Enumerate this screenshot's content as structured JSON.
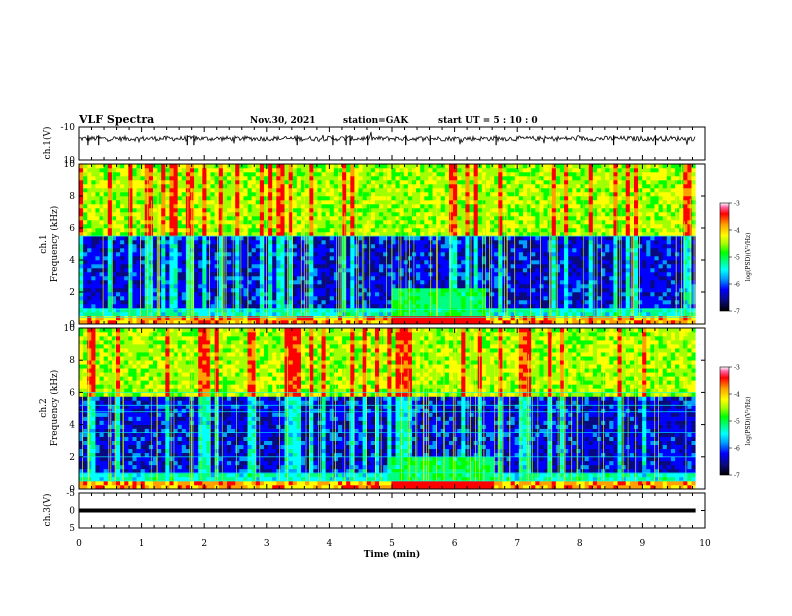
{
  "header": {
    "title": "VLF Spectra",
    "date": "Nov.30, 2021",
    "station": "station=GAK",
    "start": "start  UT =   5  : 10 : 0"
  },
  "colorbar_colors": [
    "#000000",
    "#0a0a80",
    "#0000ff",
    "#00a0ff",
    "#00ffff",
    "#00ff80",
    "#00ff00",
    "#a0ff00",
    "#ffff00",
    "#ffa000",
    "#ff0000",
    "#ff60a0",
    "#ffffff"
  ],
  "chart_data": [
    {
      "type": "line",
      "name": "ch.1 waveform",
      "ylabel": "ch.1(V)",
      "xlim": [
        0,
        10
      ],
      "ylim": [
        -10,
        10
      ],
      "ytick_labels": [
        "10",
        "-10"
      ],
      "x_end": 9.85,
      "baseline": 3,
      "noise_amplitude": 1.5
    },
    {
      "type": "heatmap",
      "name": "ch.1 spectrogram",
      "ylabel": "ch.1\nFrequency (kHz)",
      "xlim": [
        0,
        10
      ],
      "ylim": [
        0,
        10
      ],
      "x_end": 9.85,
      "ytick_labels": [
        "0",
        "2",
        "4",
        "6",
        "8",
        "10"
      ],
      "colorbar": {
        "label": "log(PSD)(V²/Hz)",
        "range": [
          -7,
          -3
        ],
        "tick_labels": [
          "-3",
          "-4",
          "-5",
          "-6",
          "-7"
        ]
      },
      "bright_band_khz": [
        5.4,
        10
      ],
      "enhanced_event": {
        "t_start": 5.0,
        "t_end": 6.5,
        "f_max_khz": 2.3
      },
      "steady_lines_khz": [
        0.4,
        0.9,
        5.5
      ]
    },
    {
      "type": "heatmap",
      "name": "ch.2 spectrogram",
      "ylabel": "ch.2\nFrequency (kHz)",
      "xlim": [
        0,
        10
      ],
      "ylim": [
        0,
        10
      ],
      "x_end": 9.85,
      "ytick_labels": [
        "0",
        "2",
        "4",
        "6",
        "8",
        "10"
      ],
      "colorbar": {
        "label": "log(PSD)(V²/Hz)",
        "range": [
          -7,
          -3
        ],
        "tick_labels": [
          "-3",
          "-4",
          "-5",
          "-6",
          "-7"
        ]
      },
      "bright_band_khz": [
        5.8,
        10
      ],
      "enhanced_event": {
        "t_start": 5.0,
        "t_end": 6.6,
        "f_max_khz": 2.1
      },
      "steady_lines_khz": [
        0.5,
        1.0,
        2.0,
        3.5,
        4.8,
        5.2,
        6.0
      ]
    },
    {
      "type": "line",
      "name": "ch.3 waveform",
      "ylabel": "ch.3(V)",
      "xlabel": "Time (min)",
      "xlim": [
        0,
        10
      ],
      "ylim": [
        -5,
        5
      ],
      "ytick_labels": [
        "5",
        "0",
        "-5"
      ],
      "x_end": 9.85,
      "constant_value": 0
    }
  ],
  "x_tick_labels": [
    "0",
    "1",
    "2",
    "3",
    "4",
    "5",
    "6",
    "7",
    "8",
    "9",
    "10"
  ],
  "x_axis_title": "Time (min)"
}
